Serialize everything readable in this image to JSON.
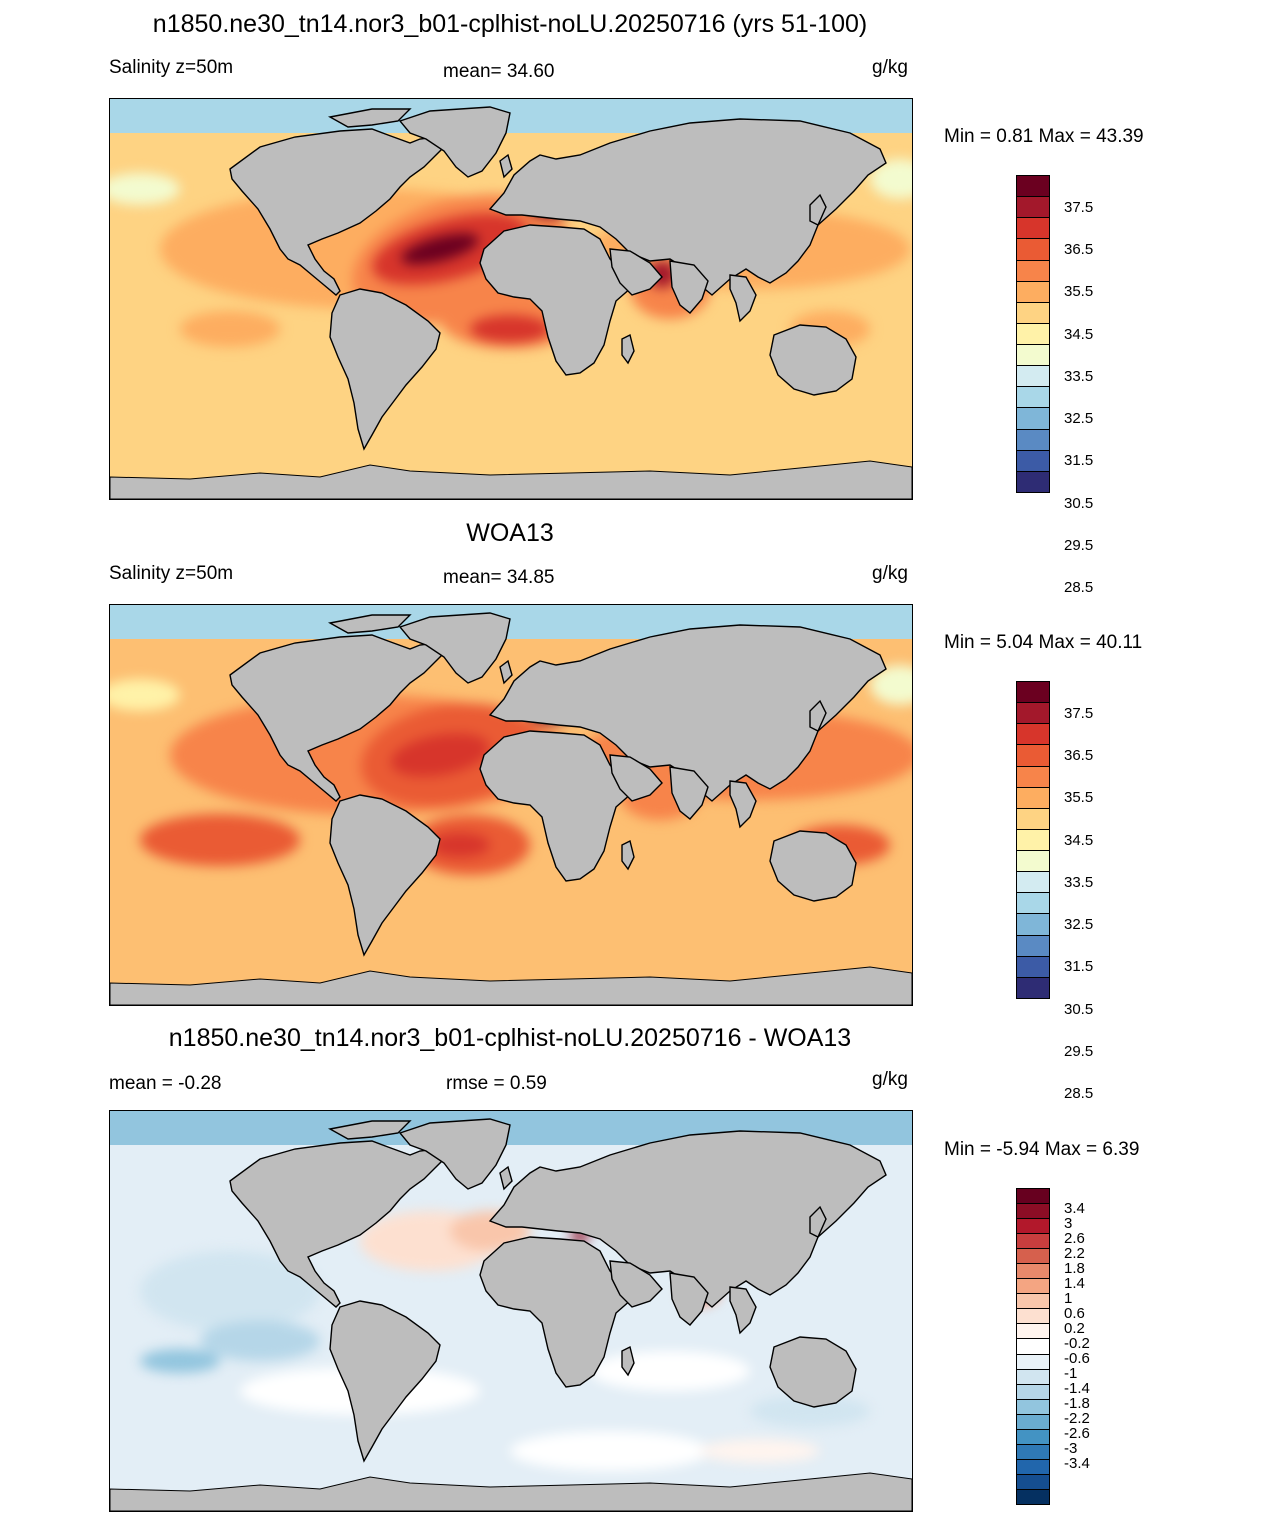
{
  "panels": [
    {
      "title": "n1850.ne30_tn14.nor3_b01-cplhist-noLU.20250716 (yrs 51-100)",
      "left_label": "Salinity z=50m",
      "center_label": "mean=  34.60",
      "right_label": "g/kg",
      "minmax": "Min =   0.81 Max =  43.39",
      "colorbar": {
        "colors": [
          "#6b0020",
          "#a3182b",
          "#d7352b",
          "#ea5b34",
          "#f7844a",
          "#fdad60",
          "#fed383",
          "#fff2a8",
          "#f3fbcf",
          "#d3ebf1",
          "#a9d7e8",
          "#7fb6d8",
          "#5a8ac3",
          "#3c5ba6",
          "#2e2c74"
        ],
        "labels": [
          "37.5",
          "36.5",
          "35.5",
          "34.5",
          "33.5",
          "32.5",
          "31.5",
          "30.5",
          "29.5",
          "28.5"
        ]
      },
      "ocean_base": "#fed383"
    },
    {
      "title": "WOA13",
      "left_label": "Salinity z=50m",
      "center_label": "mean=  34.85",
      "right_label": "g/kg",
      "minmax": "Min =   5.04 Max =  40.11",
      "colorbar": {
        "colors": [
          "#6b0020",
          "#a3182b",
          "#d7352b",
          "#ea5b34",
          "#f7844a",
          "#fdad60",
          "#fed383",
          "#fff2a8",
          "#f3fbcf",
          "#d3ebf1",
          "#a9d7e8",
          "#7fb6d8",
          "#5a8ac3",
          "#3c5ba6",
          "#2e2c74"
        ],
        "labels": [
          "37.5",
          "36.5",
          "35.5",
          "34.5",
          "33.5",
          "32.5",
          "31.5",
          "30.5",
          "29.5",
          "28.5"
        ]
      },
      "ocean_base": "#fdbf72"
    },
    {
      "title": "n1850.ne30_tn14.nor3_b01-cplhist-noLU.20250716 - WOA13",
      "left_label": "mean =  -0.28",
      "center_label": "rmse =   0.59",
      "right_label": "g/kg",
      "minmax": "Min =  -5.94 Max =   6.39",
      "colorbar": {
        "colors": [
          "#67001f",
          "#8c0d25",
          "#b2182b",
          "#c83e3e",
          "#d6604d",
          "#e8896b",
          "#f4a582",
          "#f9c6ab",
          "#fde0d0",
          "#fff4ee",
          "#ffffff",
          "#e9f2f8",
          "#d1e5f0",
          "#b5d6e8",
          "#92c5de",
          "#6aacd0",
          "#4393c3",
          "#2f79b5",
          "#2166ac",
          "#154e90",
          "#053061"
        ],
        "labels": [
          "3.4",
          "3",
          "2.6",
          "2.2",
          "1.8",
          "1.4",
          "1",
          "0.6",
          "0.2",
          "-0.2",
          "-0.6",
          "-1",
          "-1.4",
          "-1.8",
          "-2.2",
          "-2.6",
          "-3",
          "-3.4"
        ]
      },
      "ocean_base": "#e3eef6"
    }
  ]
}
